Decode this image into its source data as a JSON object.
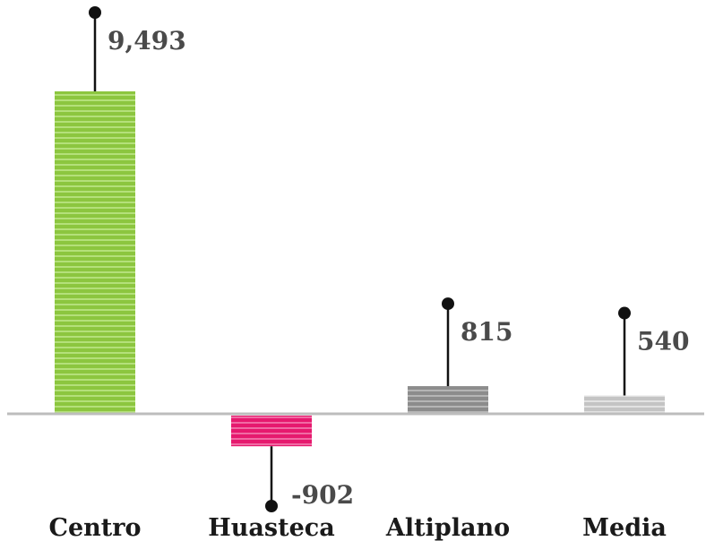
{
  "chart_data": {
    "type": "bar",
    "title": "",
    "xlabel": "",
    "ylabel": "",
    "categories": [
      "Centro",
      "Huasteca",
      "Altiplano",
      "Media"
    ],
    "values": [
      9493,
      -902,
      815,
      540
    ],
    "value_labels": [
      "9,493",
      "-902",
      "815",
      "540"
    ],
    "colors": [
      "#8cc63f",
      "#e6196e",
      "#8c8c8c",
      "#c4c4c4"
    ],
    "stripe_colors": [
      "#b4e07a",
      "#f06aa3",
      "#b5b5b5",
      "#e2e2e2"
    ],
    "baseline_color": "#bdbdbd",
    "grid": false,
    "legend": "none"
  }
}
